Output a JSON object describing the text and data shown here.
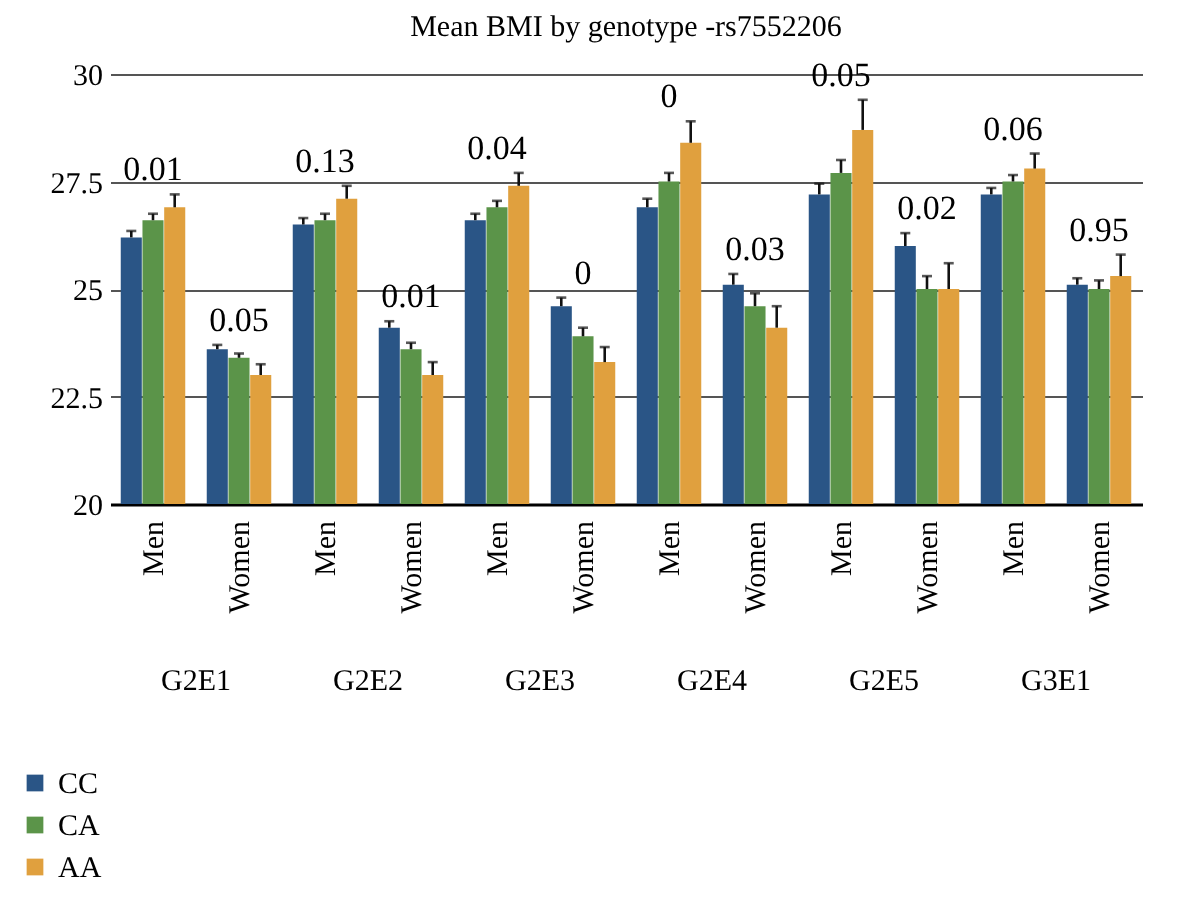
{
  "chart_data": {
    "type": "bar",
    "title": "Mean BMI by genotype -rs7552206",
    "categories": [
      "Men",
      "Women",
      "Men",
      "Women",
      "Men",
      "Women",
      "Men",
      "Women",
      "Men",
      "Women",
      "Men",
      "Women"
    ],
    "series": [
      {
        "name": "CC",
        "color": "#2a5586",
        "values": [
          26.2,
          23.6,
          26.5,
          24.1,
          26.6,
          24.6,
          26.9,
          25.1,
          27.2,
          26.0,
          27.2,
          25.1
        ],
        "errors": [
          [
            26.2,
            26.35
          ],
          [
            23.6,
            23.7
          ],
          [
            26.5,
            26.65
          ],
          [
            24.1,
            24.25
          ],
          [
            26.6,
            26.75
          ],
          [
            24.6,
            24.8
          ],
          [
            26.9,
            27.1
          ],
          [
            25.1,
            25.35
          ],
          [
            27.2,
            27.45
          ],
          [
            26.0,
            26.3
          ],
          [
            27.2,
            27.35
          ],
          [
            25.1,
            25.25
          ]
        ]
      },
      {
        "name": "CA",
        "color": "#5b9449",
        "values": [
          26.6,
          23.4,
          26.6,
          23.6,
          26.9,
          23.9,
          27.5,
          24.6,
          27.7,
          25.0,
          27.5,
          25.0
        ],
        "errors": [
          [
            26.6,
            26.75
          ],
          [
            23.4,
            23.5
          ],
          [
            26.6,
            26.75
          ],
          [
            23.6,
            23.75
          ],
          [
            26.9,
            27.05
          ],
          [
            23.9,
            24.1
          ],
          [
            27.5,
            27.7
          ],
          [
            24.6,
            24.9
          ],
          [
            27.7,
            28.0
          ],
          [
            25.0,
            25.3
          ],
          [
            27.5,
            27.65
          ],
          [
            25.0,
            25.2
          ]
        ]
      },
      {
        "name": "AA",
        "color": "#e0a03e",
        "values": [
          26.9,
          23.0,
          27.1,
          23.0,
          27.4,
          23.3,
          28.4,
          24.1,
          28.7,
          25.0,
          27.8,
          25.3
        ],
        "errors": [
          [
            26.9,
            27.2
          ],
          [
            23.0,
            23.25
          ],
          [
            27.1,
            27.4
          ],
          [
            23.0,
            23.3
          ],
          [
            27.4,
            27.7
          ],
          [
            23.3,
            23.65
          ],
          [
            28.4,
            28.9
          ],
          [
            24.1,
            24.6
          ],
          [
            28.7,
            29.4
          ],
          [
            25.0,
            25.6
          ],
          [
            27.8,
            28.15
          ],
          [
            25.3,
            25.8
          ]
        ]
      }
    ],
    "ylim": [
      20,
      30
    ],
    "yticks": [
      20,
      22.5,
      25,
      27.5,
      30
    ],
    "grid": "y",
    "legend": "bottom left",
    "annotations": [
      "0.01",
      "0.05",
      "0.13",
      "0.01",
      "0.04",
      "0",
      "0",
      "0.03",
      "0.05",
      "0.02",
      "0.06",
      "0.95",
      "G2E1",
      "G2E2",
      "G2E3",
      "G2E4",
      "G2E5",
      "G3E1"
    ]
  }
}
